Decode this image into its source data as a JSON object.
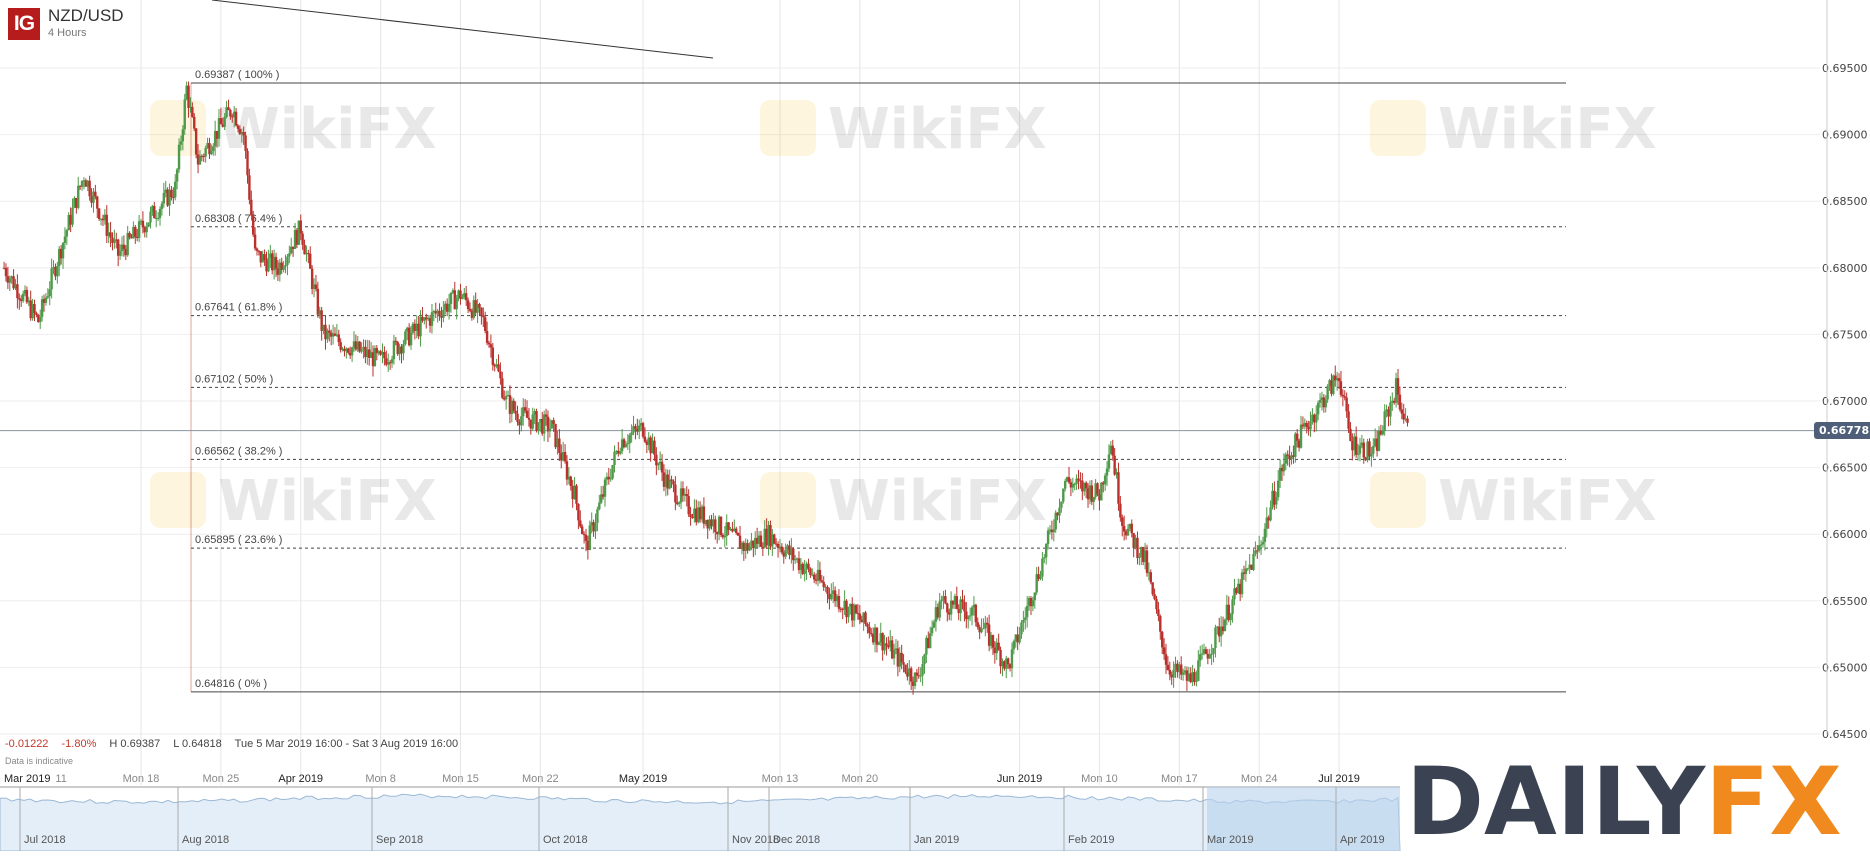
{
  "header": {
    "logo_text": "IG",
    "symbol": "NZD/USD",
    "timeframe": "4 Hours"
  },
  "stats": {
    "change": "-0.01222",
    "change_pct": "-1.80%",
    "high": "H 0.69387",
    "low": "L 0.64818",
    "range": "Tue 5 Mar 2019 16:00 - Sat 3 Aug 2019 16:00",
    "note": "Data is indicative"
  },
  "watermark": "WikiFX",
  "brand_logo": {
    "part1": "DAILY",
    "part2": "FX"
  },
  "colors": {
    "up": "#4e9a4a",
    "down": "#b9302c",
    "logo": "#b71c1c",
    "price_tag": "#4f5f7a",
    "navigator": "#cfe2f3",
    "brand_dark": "#3b4352",
    "brand_orange": "#f08a1e"
  },
  "chart_data": {
    "type": "candlestick",
    "title": "NZD/USD",
    "interval": "4 Hours",
    "ylim": [
      0.643,
      0.6995
    ],
    "grid": true,
    "y_ticks": [
      "0.69500",
      "0.69000",
      "0.68500",
      "0.68000",
      "0.67500",
      "0.67000",
      "0.66500",
      "0.66000",
      "0.65500",
      "0.65000",
      "0.64500"
    ],
    "last_price": "0.66778",
    "x_ticks": [
      {
        "label": "Mar 2019",
        "date": "2019-03-05",
        "bold": true
      },
      {
        "label": "11",
        "date": "2019-03-11"
      },
      {
        "label": "Mon 18",
        "date": "2019-03-18"
      },
      {
        "label": "Mon 25",
        "date": "2019-03-25"
      },
      {
        "label": "Apr 2019",
        "date": "2019-04-01",
        "bold": true
      },
      {
        "label": "Mon 8",
        "date": "2019-04-08"
      },
      {
        "label": "Mon 15",
        "date": "2019-04-15"
      },
      {
        "label": "Mon 22",
        "date": "2019-04-22"
      },
      {
        "label": "May 2019",
        "date": "2019-05-01",
        "bold": true
      },
      {
        "label": "Mon 13",
        "date": "2019-05-13"
      },
      {
        "label": "Mon 20",
        "date": "2019-05-20"
      },
      {
        "label": "Jun 2019",
        "date": "2019-06-03",
        "bold": true
      },
      {
        "label": "Mon 10",
        "date": "2019-06-10"
      },
      {
        "label": "Mon 17",
        "date": "2019-06-17"
      },
      {
        "label": "Mon 24",
        "date": "2019-06-24"
      },
      {
        "label": "Jul 2019",
        "date": "2019-07-01",
        "bold": true
      }
    ],
    "price_path": [
      [
        "2019-03-06",
        0.68
      ],
      [
        "2019-03-09",
        0.676
      ],
      [
        "2019-03-13",
        0.687
      ],
      [
        "2019-03-16",
        0.681
      ],
      [
        "2019-03-21",
        0.686
      ],
      [
        "2019-03-22",
        0.6935
      ],
      [
        "2019-03-23",
        0.688
      ],
      [
        "2019-03-26",
        0.692
      ],
      [
        "2019-03-27",
        0.69
      ],
      [
        "2019-03-28",
        0.681
      ],
      [
        "2019-03-30",
        0.68
      ],
      [
        "2019-04-01",
        0.683
      ],
      [
        "2019-04-03",
        0.675
      ],
      [
        "2019-04-08",
        0.673
      ],
      [
        "2019-04-12",
        0.676
      ],
      [
        "2019-04-15",
        0.678
      ],
      [
        "2019-04-17",
        0.676
      ],
      [
        "2019-04-19",
        0.67
      ],
      [
        "2019-04-20",
        0.669
      ],
      [
        "2019-04-23",
        0.668
      ],
      [
        "2019-04-25",
        0.663
      ],
      [
        "2019-04-26",
        0.659
      ],
      [
        "2019-04-29",
        0.667
      ],
      [
        "2019-05-01",
        0.668
      ],
      [
        "2019-05-03",
        0.664
      ],
      [
        "2019-05-05",
        0.662
      ],
      [
        "2019-05-07",
        0.661
      ],
      [
        "2019-05-10",
        0.659
      ],
      [
        "2019-05-12",
        0.66
      ],
      [
        "2019-05-17",
        0.656
      ],
      [
        "2019-05-22",
        0.652
      ],
      [
        "2019-05-25",
        0.649
      ],
      [
        "2019-05-27",
        0.655
      ],
      [
        "2019-05-30",
        0.654
      ],
      [
        "2019-06-02",
        0.65
      ],
      [
        "2019-06-05",
        0.658
      ],
      [
        "2019-06-07",
        0.664
      ],
      [
        "2019-06-10",
        0.663
      ],
      [
        "2019-06-11",
        0.667
      ],
      [
        "2019-06-12",
        0.661
      ],
      [
        "2019-06-14",
        0.658
      ],
      [
        "2019-06-16",
        0.65
      ],
      [
        "2019-06-18",
        0.649
      ],
      [
        "2019-06-20",
        0.652
      ],
      [
        "2019-06-24",
        0.659
      ],
      [
        "2019-06-26",
        0.665
      ],
      [
        "2019-06-28",
        0.668
      ],
      [
        "2019-07-01",
        0.672
      ],
      [
        "2019-07-02",
        0.667
      ],
      [
        "2019-07-04",
        0.666
      ],
      [
        "2019-07-06",
        0.671
      ],
      [
        "2019-07-07",
        0.6678
      ]
    ],
    "fibonacci": [
      {
        "label": "0.69387 ( 100% )",
        "price": 0.69387,
        "style": "solid"
      },
      {
        "label": "0.68308 ( 76.4% )",
        "price": 0.68308,
        "style": "dashed"
      },
      {
        "label": "0.67641 ( 61.8% )",
        "price": 0.67641,
        "style": "dashed"
      },
      {
        "label": "0.67102 ( 50% )",
        "price": 0.67102,
        "style": "dashed"
      },
      {
        "label": "0.66562 ( 38.2% )",
        "price": 0.66562,
        "style": "dashed"
      },
      {
        "label": "0.65895 ( 23.6% )",
        "price": 0.65895,
        "style": "dashed"
      },
      {
        "label": "0.64816 ( 0% )",
        "price": 0.64816,
        "style": "solid"
      }
    ],
    "fib_range": [
      "2019-03-22",
      "2019-08-03"
    ],
    "navigator_labels": [
      "Jul 2018",
      "Aug 2018",
      "Sep 2018",
      "Oct 2018",
      "Nov 2018",
      "Dec 2018",
      "Jan 2019",
      "Feb 2019",
      "Mar 2019",
      "Apr 2019"
    ]
  }
}
